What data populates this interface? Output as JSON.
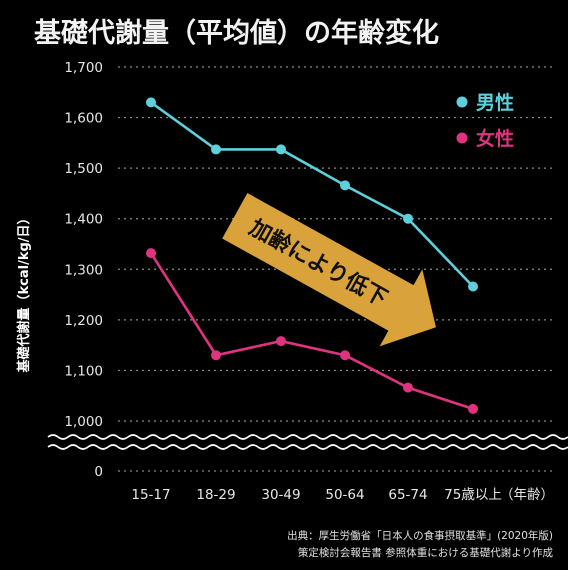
{
  "chart_data": {
    "type": "line",
    "title": "基礎代謝量（平均値）の年齢変化",
    "ylabel": "基礎代謝量（kcal/kg/日）",
    "categories": [
      "15-17",
      "18-29",
      "30-49",
      "50-64",
      "65-74",
      "75歳以上"
    ],
    "xlabel_suffix": "（年齢）",
    "ylim": [
      1000,
      1700
    ],
    "yticks": [
      "1,700",
      "1,600",
      "1,500",
      "1,400",
      "1,300",
      "1,200",
      "1,100",
      "1,000"
    ],
    "ytick_values": [
      1700,
      1600,
      1500,
      1400,
      1300,
      1200,
      1100,
      1000
    ],
    "axis_break_zero": "0",
    "grid": true,
    "legend_position": "top-right",
    "series": [
      {
        "name": "男性",
        "color": "#5dd0dc",
        "values": [
          1630,
          1537,
          1537,
          1466,
          1400,
          1266
        ]
      },
      {
        "name": "女性",
        "color": "#e0337f",
        "values": [
          1332,
          1130,
          1158,
          1130,
          1066,
          1024
        ]
      }
    ],
    "annotation": {
      "text": "加齢により低下",
      "color": "#d9a23a"
    },
    "source_lines": [
      "出典：厚生労働省「日本人の食事摂取基準」(2020年版)",
      "策定検討会報告書 参照体重における基礎代謝より作成"
    ]
  }
}
